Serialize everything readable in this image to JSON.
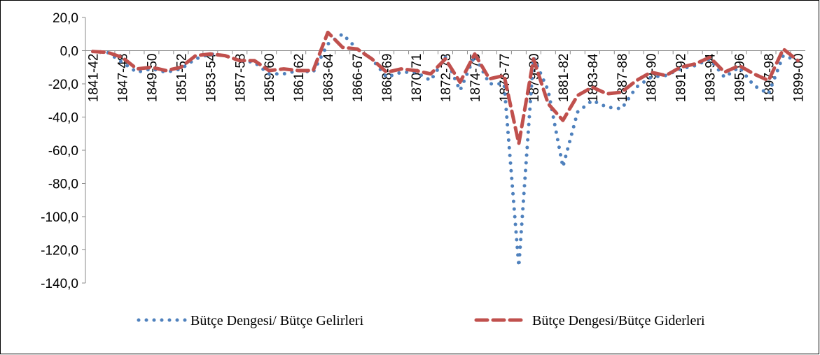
{
  "chart_data": {
    "type": "line",
    "categories": [
      "1841-42",
      null,
      "1847-48",
      null,
      "1849-50",
      null,
      "1851-52",
      null,
      "1853-54",
      null,
      "1857-58",
      null,
      "1859-60",
      null,
      "1861-62",
      null,
      "1863-64",
      null,
      "1866-67",
      null,
      "1868-69",
      null,
      "1870-71",
      null,
      "1872-73",
      null,
      "1874-75",
      null,
      "1876-77",
      null,
      "1879-80",
      null,
      "1881-82",
      null,
      "1883-84",
      null,
      "1887-88",
      null,
      "1889-90",
      null,
      "1891-92",
      null,
      "1893-94",
      null,
      "1895-96",
      null,
      "1897-98",
      null,
      "1899-00"
    ],
    "series": [
      {
        "name": "Bütçe Dengesi/ Bütçe Gelirleri",
        "color": "#4f81bd",
        "style": "dotted",
        "values": [
          -0.5,
          -1,
          -7,
          -13,
          -11,
          -13,
          -11,
          -5,
          -2,
          -3,
          -6,
          -7,
          -14,
          -14,
          -12,
          -13,
          4,
          10,
          1,
          -5,
          -16,
          -13,
          -13,
          -18,
          -4,
          -24,
          -3,
          -20,
          -20,
          -130,
          -4,
          -24,
          -70,
          -37,
          -30,
          -34,
          -35,
          -22,
          -16,
          -15,
          -11,
          -9,
          -5,
          -16,
          -10,
          -21,
          -26,
          -3,
          -6
        ]
      },
      {
        "name": "Bütçe Dengesi/Bütçe Giderleri",
        "color": "#c0504d",
        "style": "dashed",
        "values": [
          -0.5,
          -1,
          -4,
          -11,
          -10,
          -12,
          -10,
          -3,
          -2,
          -3,
          -6,
          -6,
          -12,
          -11,
          -12,
          -12,
          11,
          2,
          1,
          -5,
          -13,
          -11,
          -12,
          -14,
          -5,
          -19,
          -2,
          -17,
          -15,
          -56,
          -5,
          -32,
          -42,
          -27,
          -22,
          -26,
          -25,
          -18,
          -13,
          -15,
          -10,
          -8,
          -4,
          -13,
          -9,
          -14,
          -18,
          1,
          -6
        ]
      }
    ],
    "ylim": [
      -140,
      20
    ],
    "yticks": [
      {
        "value": 20,
        "label": "20,0"
      },
      {
        "value": 0,
        "label": "0,0"
      },
      {
        "value": -20,
        "label": "-20,0"
      },
      {
        "value": -40,
        "label": "-40,0"
      },
      {
        "value": -60,
        "label": "-60,0"
      },
      {
        "value": -80,
        "label": "-80,0"
      },
      {
        "value": -100,
        "label": "-100,0"
      },
      {
        "value": -120,
        "label": "-120,0"
      },
      {
        "value": -140,
        "label": "-140,0"
      }
    ],
    "legend": "bottom"
  }
}
